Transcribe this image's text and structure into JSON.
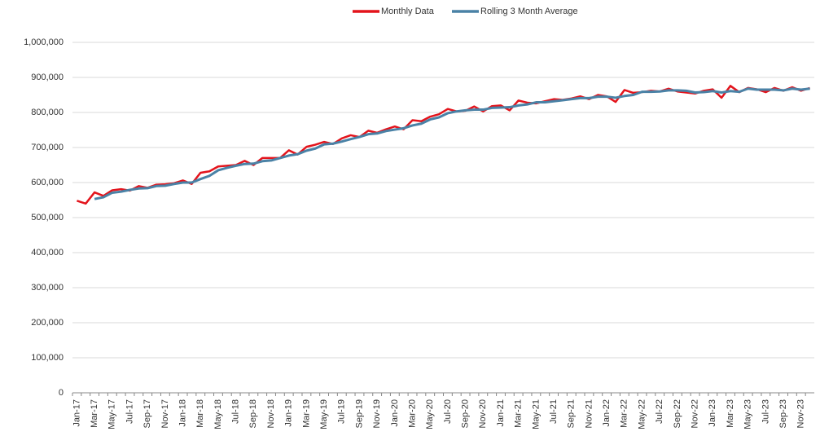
{
  "chart_data": {
    "type": "line",
    "categories": [
      "Jan-17",
      null,
      "Mar-17",
      null,
      "May-17",
      null,
      "Jul-17",
      null,
      "Sep-17",
      null,
      "Nov-17",
      null,
      "Jan-18",
      null,
      "Mar-18",
      null,
      "May-18",
      null,
      "Jul-18",
      null,
      "Sep-18",
      null,
      "Nov-18",
      null,
      "Jan-19",
      null,
      "Mar-19",
      null,
      "May-19",
      null,
      "Jul-19",
      null,
      "Sep-19",
      null,
      "Nov-19",
      null,
      "Jan-20",
      null,
      "Mar-20",
      null,
      "May-20",
      null,
      "Jul-20",
      null,
      "Sep-20",
      null,
      "Nov-20",
      null,
      "Jan-21",
      null,
      "Mar-21",
      null,
      "May-21",
      null,
      "Jul-21",
      null,
      "Sep-21",
      null,
      "Nov-21",
      null,
      "Jan-22",
      null,
      "Mar-22",
      null,
      "May-22",
      null,
      "Jul-22",
      null,
      "Sep-22",
      null,
      "Nov-22",
      null,
      "Jan-23",
      null,
      "Mar-23",
      null,
      "May-23",
      null,
      "Jul-23",
      null,
      "Sep-23",
      null,
      "Nov-23",
      null
    ],
    "series": [
      {
        "name": "Monthly Data",
        "color": "#e3141c",
        "values": [
          548000,
          540000,
          572000,
          562000,
          578000,
          581000,
          577000,
          590000,
          585000,
          594000,
          595000,
          598000,
          606000,
          596000,
          628000,
          632000,
          646000,
          648000,
          650000,
          662000,
          650000,
          670000,
          670000,
          670000,
          692000,
          680000,
          702000,
          708000,
          716000,
          710000,
          726000,
          735000,
          730000,
          748000,
          742000,
          752000,
          760000,
          752000,
          778000,
          775000,
          788000,
          795000,
          810000,
          803000,
          805000,
          817000,
          803000,
          818000,
          820000,
          806000,
          834000,
          828000,
          826000,
          832000,
          838000,
          836000,
          840000,
          846000,
          838000,
          850000,
          846000,
          830000,
          864000,
          856000,
          858000,
          862000,
          860000,
          868000,
          860000,
          857000,
          854000,
          862000,
          866000,
          842000,
          876000,
          858000,
          870000,
          866000,
          858000,
          870000,
          862000,
          872000,
          862000,
          870000
        ]
      },
      {
        "name": "Rolling 3 Month Average",
        "color": "#4a82a6",
        "values": [
          null,
          null,
          553000,
          558000,
          571000,
          574000,
          579000,
          583000,
          584000,
          590000,
          591000,
          596000,
          600000,
          600000,
          610000,
          619000,
          635000,
          642000,
          648000,
          653000,
          654000,
          661000,
          663000,
          670000,
          677000,
          681000,
          691000,
          697000,
          709000,
          711000,
          717000,
          724000,
          730000,
          738000,
          740000,
          747000,
          751000,
          755000,
          763000,
          768000,
          780000,
          786000,
          798000,
          803000,
          806000,
          808000,
          808000,
          813000,
          814000,
          815000,
          820000,
          823000,
          829000,
          829000,
          832000,
          835000,
          838000,
          841000,
          841000,
          845000,
          845000,
          842000,
          847000,
          850000,
          859000,
          859000,
          860000,
          863000,
          863000,
          862000,
          857000,
          858000,
          861000,
          857000,
          861000,
          859000,
          868000,
          865000,
          865000,
          865000,
          863000,
          868000,
          865000,
          868000
        ]
      }
    ],
    "ylim": [
      0,
      1000000
    ],
    "yticks": [
      0,
      {
        "value": 100000,
        "label": "100,000"
      },
      {
        "value": 200000,
        "label": "200,000"
      },
      {
        "value": 300000,
        "label": "300,000"
      },
      {
        "value": 400000,
        "label": "400,000"
      },
      {
        "value": 500000,
        "label": "500,000"
      },
      {
        "value": 600000,
        "label": "600,000"
      },
      {
        "value": 700000,
        "label": "700,000"
      },
      {
        "value": 800000,
        "label": "800,000"
      },
      {
        "value": 900000,
        "label": "900,000"
      },
      {
        "value": 1000000,
        "label": "1,000,000"
      }
    ],
    "grid": true,
    "legend": "top"
  }
}
